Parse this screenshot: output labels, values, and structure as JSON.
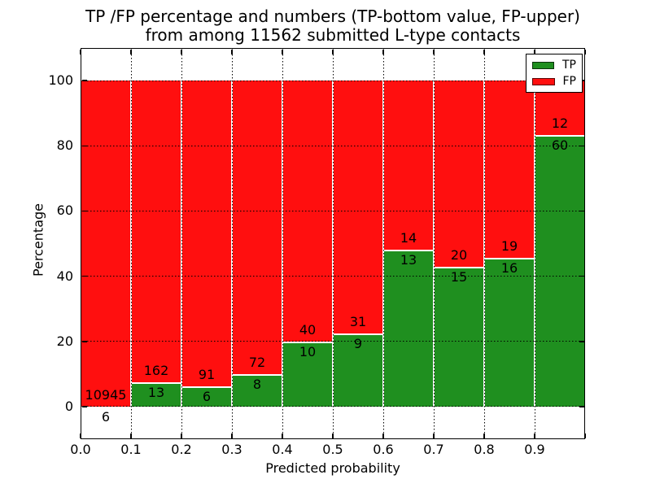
{
  "title": {
    "line1": "TP /FP percentage and numbers (TP-bottom value, FP-upper)",
    "line2": "from among 11562 submitted L-type contacts"
  },
  "axes": {
    "xlabel": "Predicted probability",
    "ylabel": "Percentage",
    "x_tick_labels": [
      "0.0",
      "0.1",
      "0.2",
      "0.3",
      "0.4",
      "0.5",
      "0.6",
      "0.7",
      "0.8",
      "0.9"
    ],
    "y_tick_labels": [
      "0",
      "20",
      "40",
      "60",
      "80",
      "100"
    ],
    "y_tick_values": [
      0,
      20,
      40,
      60,
      80,
      100
    ]
  },
  "legend": {
    "items": [
      {
        "label": "TP",
        "color": "#1f8f1f"
      },
      {
        "label": "FP",
        "color": "#ff0f0f"
      }
    ]
  },
  "chart_data": {
    "type": "bar",
    "stacked": true,
    "title": "TP /FP percentage and numbers (TP-bottom value, FP-upper) from among 11562 submitted L-type contacts",
    "total_submitted": 11562,
    "xlabel": "Predicted probability",
    "ylabel": "Percentage",
    "xlim": [
      0.0,
      1.0
    ],
    "ylim": [
      -10,
      110
    ],
    "grid": "dotted black, both axes",
    "legend_position": "upper right",
    "bar_edge_color": "#ffffff",
    "categories": [
      "0.0-0.1",
      "0.1-0.2",
      "0.2-0.3",
      "0.3-0.4",
      "0.4-0.5",
      "0.5-0.6",
      "0.6-0.7",
      "0.7-0.8",
      "0.8-0.9",
      "0.9-1.0"
    ],
    "series": [
      {
        "name": "TP",
        "color": "#1f8f1f",
        "counts": [
          6,
          13,
          6,
          8,
          10,
          9,
          13,
          15,
          16,
          60
        ],
        "pct": [
          0.05,
          7.43,
          6.19,
          10.0,
          20.0,
          22.5,
          48.15,
          42.86,
          45.71,
          83.33
        ]
      },
      {
        "name": "FP",
        "color": "#ff0f0f",
        "counts": [
          10945,
          162,
          91,
          72,
          40,
          31,
          14,
          20,
          19,
          12
        ],
        "pct": [
          99.95,
          92.57,
          93.81,
          90.0,
          80.0,
          77.5,
          51.85,
          57.14,
          54.29,
          16.67
        ]
      }
    ]
  }
}
